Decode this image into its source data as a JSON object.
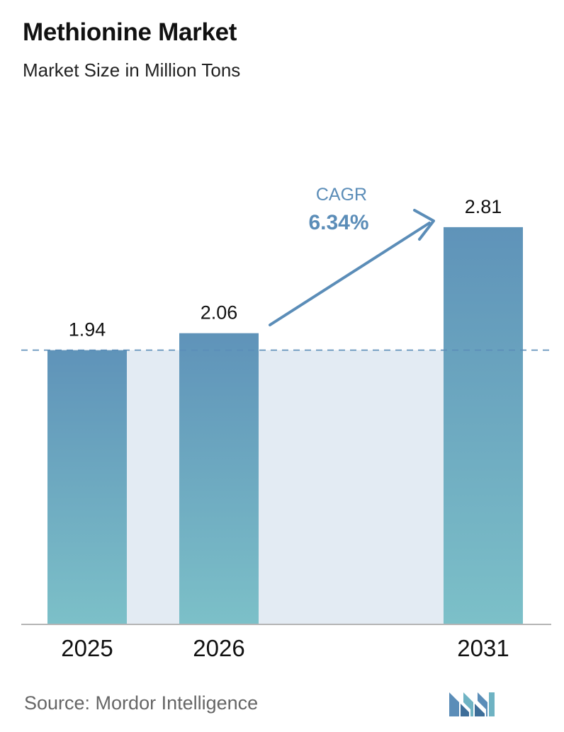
{
  "header": {
    "title": "Methionine Market",
    "subtitle": "Market Size in Million Tons"
  },
  "footer": {
    "source": "Source:  Mordor Intelligence",
    "logo_icon": "mordor-intelligence-logo-icon"
  },
  "cagr": {
    "label": "CAGR",
    "value": "6.34%"
  },
  "colors": {
    "bar_top": "#5f93b9",
    "bar_bottom": "#7cc0c8",
    "band": "#e3ebf3",
    "accent": "#5b8db8",
    "baseline": "#b5b5b5"
  },
  "chart_data": {
    "type": "bar",
    "title": "Methionine Market",
    "subtitle": "Market Size in Million Tons",
    "categories": [
      "2025",
      "2026",
      "2031"
    ],
    "values": [
      1.94,
      2.06,
      2.81
    ],
    "value_labels": [
      "1.94",
      "2.06",
      "2.81"
    ],
    "ylim": [
      0,
      3.2
    ],
    "grid": false,
    "reference_line_value": 1.94,
    "annotation": "CAGR 6.34%"
  }
}
